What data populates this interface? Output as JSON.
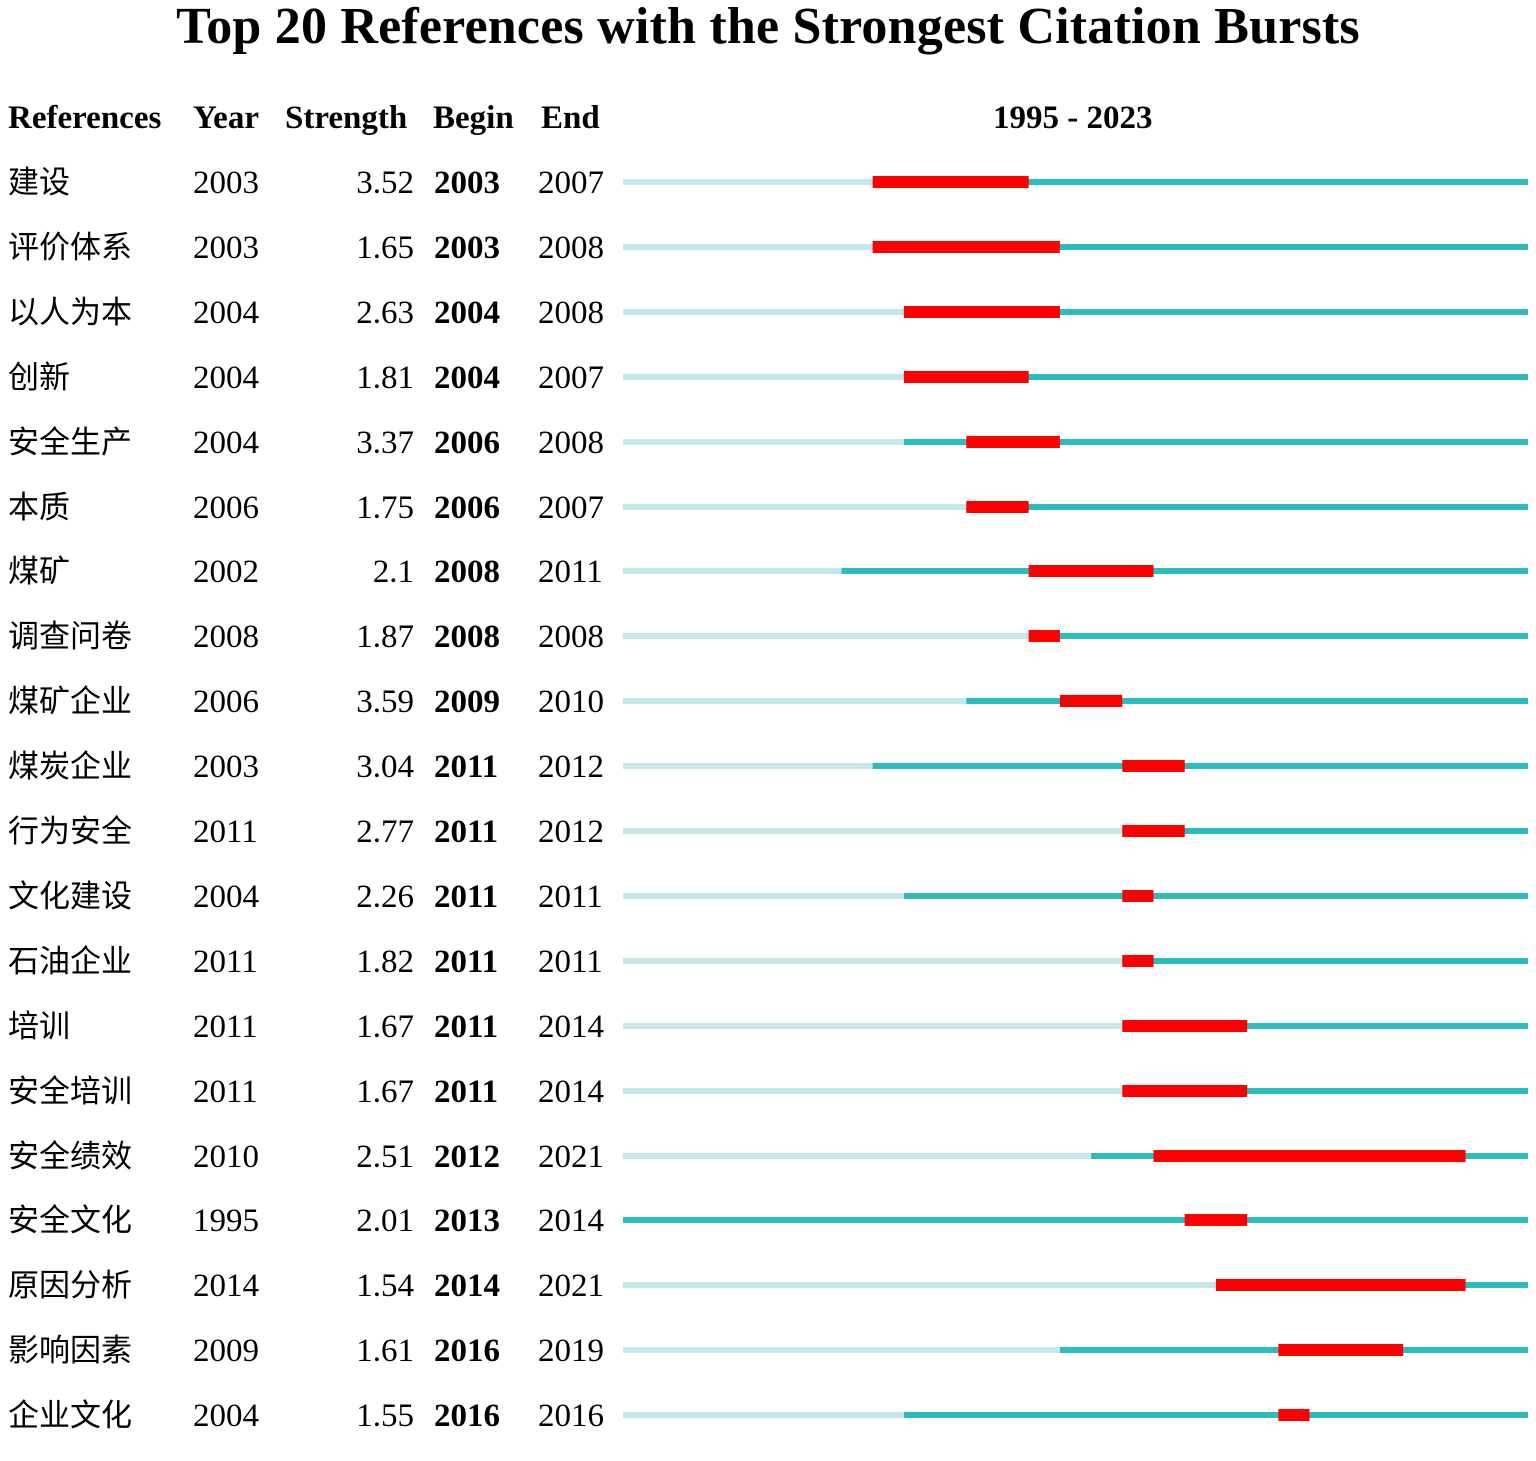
{
  "title": "Top 20 References with the Strongest Citation Bursts",
  "headers": {
    "references": "References",
    "year": "Year",
    "strength": "Strength",
    "begin": "Begin",
    "end": "End",
    "range": "1995 - 2023"
  },
  "colors": {
    "before": "#c6e8ea",
    "active": "#2bbcbf",
    "burst": "#ff0000"
  },
  "chart_data": {
    "type": "table",
    "title": "Top 20 References with the Strongest Citation Bursts",
    "timeline_range": [
      1995,
      2023
    ],
    "columns": [
      "References",
      "Year",
      "Strength",
      "Begin",
      "End"
    ],
    "rows": [
      {
        "ref": "建设",
        "year": "2003",
        "strength": "3.52",
        "begin": "2003",
        "end": "2007"
      },
      {
        "ref": "评价体系",
        "year": "2003",
        "strength": "1.65",
        "begin": "2003",
        "end": "2008"
      },
      {
        "ref": "以人为本",
        "year": "2004",
        "strength": "2.63",
        "begin": "2004",
        "end": "2008"
      },
      {
        "ref": "创新",
        "year": "2004",
        "strength": "1.81",
        "begin": "2004",
        "end": "2007"
      },
      {
        "ref": "安全生产",
        "year": "2004",
        "strength": "3.37",
        "begin": "2006",
        "end": "2008"
      },
      {
        "ref": "本质",
        "year": "2006",
        "strength": "1.75",
        "begin": "2006",
        "end": "2007"
      },
      {
        "ref": "煤矿",
        "year": "2002",
        "strength": "2.1",
        "begin": "2008",
        "end": "2011"
      },
      {
        "ref": "调查问卷",
        "year": "2008",
        "strength": "1.87",
        "begin": "2008",
        "end": "2008"
      },
      {
        "ref": "煤矿企业",
        "year": "2006",
        "strength": "3.59",
        "begin": "2009",
        "end": "2010"
      },
      {
        "ref": "煤炭企业",
        "year": "2003",
        "strength": "3.04",
        "begin": "2011",
        "end": "2012"
      },
      {
        "ref": "行为安全",
        "year": "2011",
        "strength": "2.77",
        "begin": "2011",
        "end": "2012"
      },
      {
        "ref": "文化建设",
        "year": "2004",
        "strength": "2.26",
        "begin": "2011",
        "end": "2011"
      },
      {
        "ref": "石油企业",
        "year": "2011",
        "strength": "1.82",
        "begin": "2011",
        "end": "2011"
      },
      {
        "ref": "培训",
        "year": "2011",
        "strength": "1.67",
        "begin": "2011",
        "end": "2014"
      },
      {
        "ref": "安全培训",
        "year": "2011",
        "strength": "1.67",
        "begin": "2011",
        "end": "2014"
      },
      {
        "ref": "安全绩效",
        "year": "2010",
        "strength": "2.51",
        "begin": "2012",
        "end": "2021"
      },
      {
        "ref": "安全文化",
        "year": "1995",
        "strength": "2.01",
        "begin": "2013",
        "end": "2014"
      },
      {
        "ref": "原因分析",
        "year": "2014",
        "strength": "1.54",
        "begin": "2014",
        "end": "2021"
      },
      {
        "ref": "影响因素",
        "year": "2009",
        "strength": "1.61",
        "begin": "2016",
        "end": "2019"
      },
      {
        "ref": "企业文化",
        "year": "2004",
        "strength": "1.55",
        "begin": "2016",
        "end": "2016"
      }
    ]
  }
}
